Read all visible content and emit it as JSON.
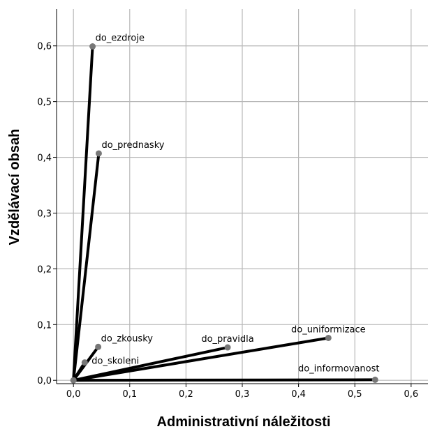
{
  "chart_data": {
    "type": "scatter",
    "title": "",
    "xlabel": "Administrativní náležitosti",
    "ylabel": "Vzdělávací obsah",
    "xlim": [
      -0.03,
      0.63
    ],
    "ylim": [
      -0.006,
      0.666
    ],
    "grid": true,
    "origin": [
      0.0,
      0.0
    ],
    "x_ticks": [
      {
        "value": 0.0,
        "label": "0,0"
      },
      {
        "value": 0.1,
        "label": "0,1"
      },
      {
        "value": 0.2,
        "label": "0,2"
      },
      {
        "value": 0.3,
        "label": "0,3"
      },
      {
        "value": 0.4,
        "label": "0,4"
      },
      {
        "value": 0.5,
        "label": "0,5"
      },
      {
        "value": 0.6,
        "label": "0,6"
      }
    ],
    "y_ticks": [
      {
        "value": 0.0,
        "label": "0,0"
      },
      {
        "value": 0.1,
        "label": "0,1"
      },
      {
        "value": 0.2,
        "label": "0,2"
      },
      {
        "value": 0.3,
        "label": "0,3"
      },
      {
        "value": 0.4,
        "label": "0,4"
      },
      {
        "value": 0.5,
        "label": "0,5"
      },
      {
        "value": 0.6,
        "label": "0,6"
      }
    ],
    "points": [
      {
        "name": "do_ezdroje",
        "x": 0.034,
        "y": 0.599
      },
      {
        "name": "do_prednasky",
        "x": 0.045,
        "y": 0.407
      },
      {
        "name": "do_zkousky",
        "x": 0.044,
        "y": 0.06
      },
      {
        "name": "do_skoleni",
        "x": 0.02,
        "y": 0.032
      },
      {
        "name": "do_pravidla",
        "x": 0.274,
        "y": 0.059
      },
      {
        "name": "do_uniformizace",
        "x": 0.453,
        "y": 0.076
      },
      {
        "name": "do_informovanost",
        "x": 0.536,
        "y": 0.001
      }
    ]
  }
}
